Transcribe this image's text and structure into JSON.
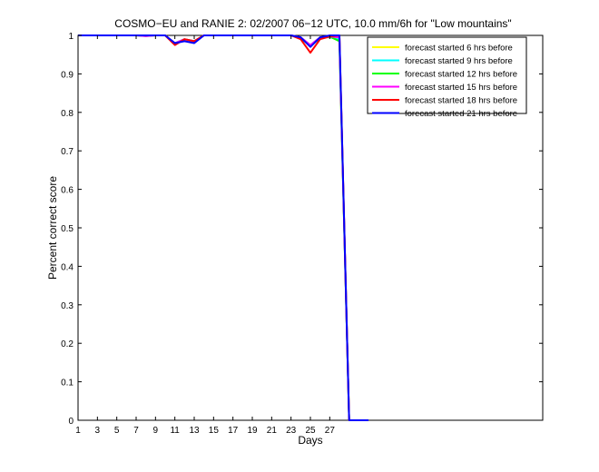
{
  "chart_data": {
    "type": "line",
    "title": "COSMO−EU and RANIE 2: 02/2007 06−12 UTC, 10.0 mm/6h for \"Low mountains\"",
    "xlabel": "Days",
    "ylabel": "Percent correct score",
    "xlim": [
      1,
      49
    ],
    "ylim": [
      0,
      1
    ],
    "xticks": [
      1,
      3,
      5,
      7,
      9,
      11,
      13,
      15,
      17,
      19,
      21,
      23,
      25,
      27
    ],
    "yticks": [
      0,
      0.1,
      0.2,
      0.3,
      0.4,
      0.5,
      0.6,
      0.7,
      0.8,
      0.9,
      1
    ],
    "ytick_labels": [
      "0",
      "0.1",
      "0.2",
      "0.3",
      "0.4",
      "0.5",
      "0.6",
      "0.7",
      "0.8",
      "0.9",
      "1"
    ],
    "grid": false,
    "legend_position": "top-right",
    "x": [
      1,
      2,
      3,
      4,
      5,
      6,
      7,
      8,
      9,
      10,
      11,
      12,
      13,
      14,
      15,
      16,
      17,
      18,
      19,
      20,
      21,
      22,
      23,
      24,
      25,
      26,
      27,
      28,
      29,
      30,
      31
    ],
    "series": [
      {
        "name": "forecast started 6 hrs before",
        "color": "#ffff00",
        "values": [
          1,
          1,
          1,
          1,
          1,
          1,
          1,
          1,
          1,
          1,
          0.98,
          0.99,
          0.985,
          1,
          1,
          1,
          1,
          1,
          1,
          1,
          1,
          1,
          1,
          0.995,
          0.975,
          0.995,
          0.995,
          0.99,
          0,
          0,
          0
        ]
      },
      {
        "name": "forecast started 9 hrs before",
        "color": "#00ffff",
        "values": [
          1,
          1,
          1,
          1,
          1,
          1,
          1,
          1,
          1,
          1,
          0.98,
          0.99,
          0.985,
          1,
          1,
          1,
          1,
          1,
          1,
          1,
          1,
          1,
          1,
          0.995,
          0.975,
          0.995,
          0.995,
          0.99,
          0,
          0,
          0
        ]
      },
      {
        "name": "forecast started 12 hrs before",
        "color": "#00ff00",
        "values": [
          1,
          1,
          1,
          1,
          1,
          1,
          1,
          0.998,
          1,
          1,
          0.978,
          0.99,
          0.985,
          1,
          1,
          1,
          1,
          1,
          1,
          1,
          1,
          1,
          1,
          0.993,
          0.972,
          0.993,
          0.997,
          0.985,
          0,
          0,
          0
        ]
      },
      {
        "name": "forecast started 15 hrs before",
        "color": "#ff00ff",
        "values": [
          1,
          1,
          1,
          1,
          1,
          1,
          1,
          0.998,
          1,
          1,
          0.98,
          0.99,
          0.985,
          1,
          1,
          1,
          1,
          1,
          1,
          1,
          1,
          1,
          1,
          0.995,
          0.975,
          0.995,
          0.997,
          0.995,
          0,
          0,
          0
        ]
      },
      {
        "name": "forecast started 18 hrs before",
        "color": "#ff0000",
        "values": [
          1,
          1,
          1,
          1,
          1,
          1,
          1,
          1,
          1,
          1,
          0.975,
          0.99,
          0.985,
          1,
          1,
          1,
          1,
          1,
          1,
          1,
          1,
          1,
          1,
          0.99,
          0.955,
          0.99,
          0.997,
          1,
          0,
          0,
          0
        ]
      },
      {
        "name": "forecast started 21 hrs before",
        "color": "#0000ff",
        "values": [
          1,
          1,
          1,
          1,
          1,
          1,
          1,
          1,
          1,
          1,
          0.98,
          0.985,
          0.98,
          1,
          1,
          1,
          1,
          1,
          1,
          1,
          1,
          1,
          1,
          0.995,
          0.97,
          0.995,
          1,
          1,
          0,
          0,
          0
        ]
      }
    ]
  }
}
